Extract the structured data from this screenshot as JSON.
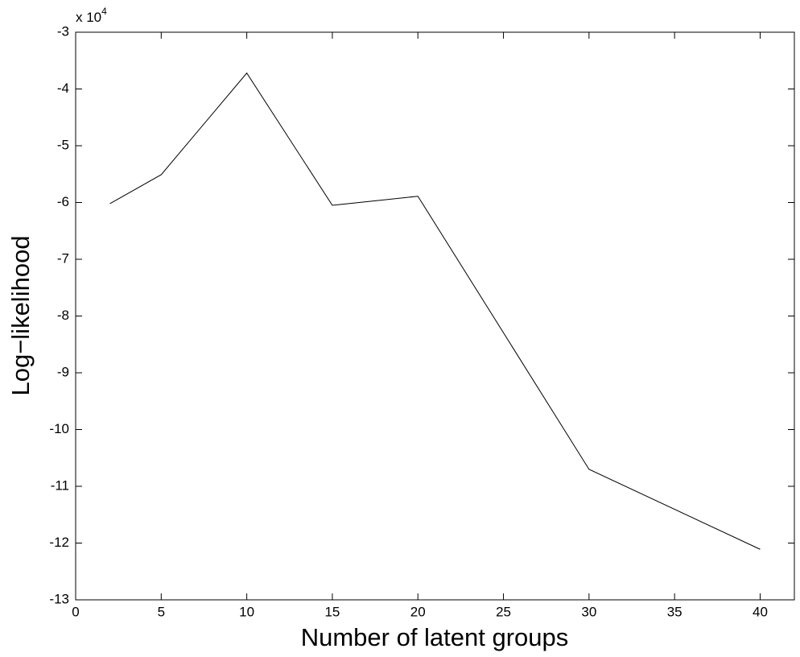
{
  "chart_data": {
    "type": "line",
    "xlabel": "Number of latent groups",
    "ylabel": "Log−likelihood",
    "y_multiplier": {
      "base": "x 10",
      "exponent": "4"
    },
    "x": [
      2,
      5,
      10,
      15,
      20,
      30,
      40
    ],
    "series": [
      {
        "color": "#000000",
        "values": [
          -6.02,
          -5.51,
          -3.72,
          -6.05,
          -5.89,
          -10.7,
          -12.11
        ]
      }
    ],
    "xlim": [
      0,
      42
    ],
    "xticks": [
      0,
      5,
      10,
      15,
      20,
      25,
      30,
      35,
      40
    ],
    "ylim": [
      -13,
      -3
    ],
    "yticks": [
      -3,
      -4,
      -5,
      -6,
      -7,
      -8,
      -9,
      -10,
      -11,
      -12,
      -13
    ],
    "grid": false
  }
}
